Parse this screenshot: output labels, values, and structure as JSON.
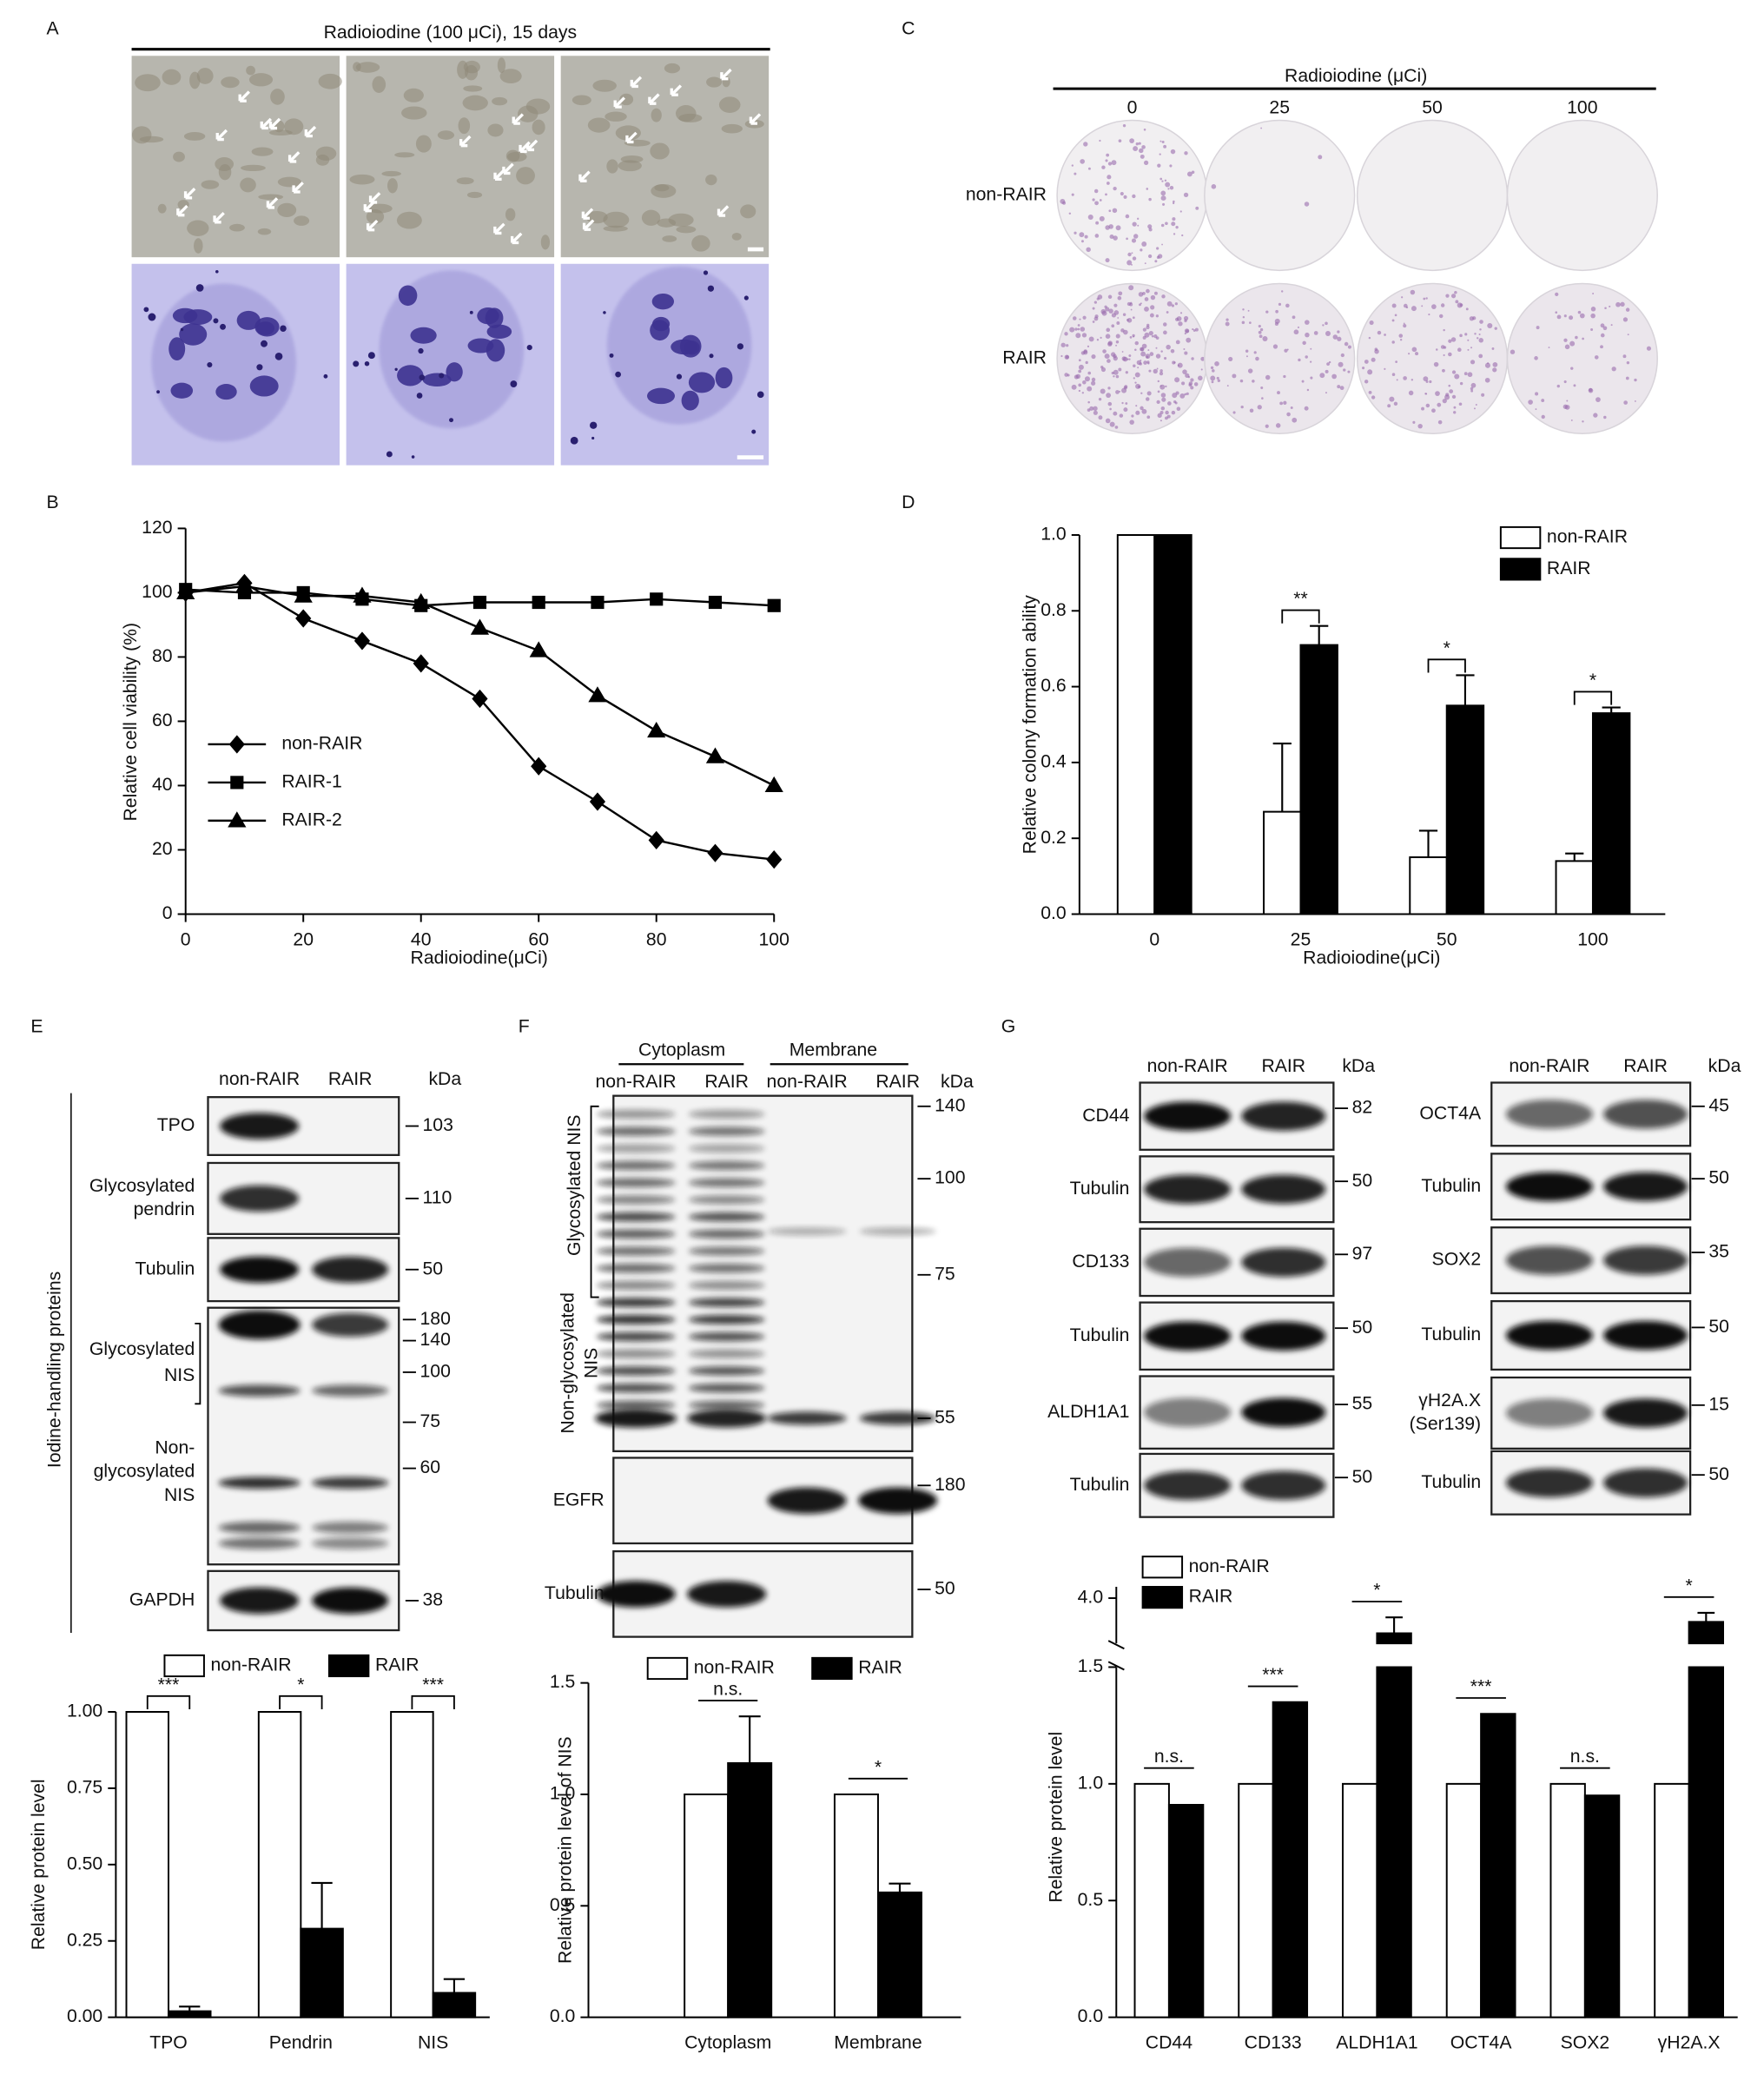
{
  "panel_labels": [
    "A",
    "B",
    "C",
    "D",
    "E",
    "F",
    "G"
  ],
  "panel_a": {
    "title": "Radioiodine (100 μCi), 15 days"
  },
  "panel_c": {
    "title": "Radioiodine (μCi)",
    "columns": [
      "0",
      "25",
      "50",
      "100"
    ],
    "rows": [
      "non-RAIR",
      "RAIR"
    ]
  },
  "panel_e_blot": {
    "lanes": [
      "non-RAIR",
      "RAIR"
    ],
    "unit": "kDa",
    "side_label": "Iodine-handling proteins",
    "rows": [
      {
        "label": [
          "TPO"
        ],
        "kda": [
          103
        ]
      },
      {
        "label": [
          "Glycosylated",
          "pendrin"
        ],
        "kda": [
          110
        ]
      },
      {
        "label": [
          "Tubulin"
        ],
        "kda": [
          50
        ]
      },
      {
        "groups": [
          [
            "Glycosylated",
            "NIS"
          ],
          [
            "Non-",
            "glycosylated",
            "NIS"
          ]
        ],
        "kda": [
          180,
          140,
          100,
          75,
          60
        ]
      },
      {
        "label": [
          "GAPDH"
        ],
        "kda": [
          38
        ]
      }
    ]
  },
  "panel_f_blot": {
    "fractions": [
      "Cytoplasm",
      "Membrane"
    ],
    "lanes": [
      "non-RAIR",
      "RAIR",
      "non-RAIR",
      "RAIR"
    ],
    "unit": "kDa",
    "nis_box": {
      "groups": [
        [
          "Glycosylated NIS"
        ],
        [
          "Non-glycosylated",
          "NIS"
        ]
      ],
      "kda": [
        140,
        100,
        75,
        55
      ]
    },
    "rows": [
      {
        "label": "EGFR",
        "kda": 180
      },
      {
        "label": "Tubulin",
        "kda": 50
      }
    ]
  },
  "panel_g_blot": {
    "left": {
      "lanes": [
        "non-RAIR",
        "RAIR"
      ],
      "unit": "kDa",
      "rows": [
        {
          "label": [
            "CD44"
          ],
          "kda": 82
        },
        {
          "label": [
            "Tubulin"
          ],
          "kda": 50
        },
        {
          "label": [
            "CD133"
          ],
          "kda": 97
        },
        {
          "label": [
            "Tubulin"
          ],
          "kda": 50
        },
        {
          "label": [
            "ALDH1A1"
          ],
          "kda": 55
        },
        {
          "label": [
            "Tubulin"
          ],
          "kda": 50
        }
      ]
    },
    "right": {
      "lanes": [
        "non-RAIR",
        "RAIR"
      ],
      "unit": "kDa",
      "rows": [
        {
          "label": [
            "OCT4A"
          ],
          "kda": 45
        },
        {
          "label": [
            "Tubulin"
          ],
          "kda": 50
        },
        {
          "label": [
            "SOX2"
          ],
          "kda": 35
        },
        {
          "label": [
            "Tubulin"
          ],
          "kda": 50
        },
        {
          "label": [
            "γH2A.X",
            "(Ser139)"
          ],
          "kda": 15
        },
        {
          "label": [
            "Tubulin"
          ],
          "kda": 50
        }
      ]
    }
  },
  "chart_data": [
    {
      "type": "line",
      "ylabel": "Relative cell viability (%)",
      "xlabel": "Radioiodine(μCi)",
      "x": [
        0,
        10,
        20,
        30,
        40,
        50,
        60,
        70,
        80,
        90,
        100
      ],
      "xlim": [
        0,
        100
      ],
      "xticks": [
        0,
        20,
        40,
        60,
        80,
        100
      ],
      "ylim": [
        0,
        120
      ],
      "yticks": [
        0,
        20,
        40,
        60,
        80,
        100,
        120
      ],
      "legend": "lower left",
      "series": [
        {
          "name": "non-RAIR",
          "color": "#000000",
          "marker": "diamond",
          "values": [
            100,
            103,
            92,
            85,
            78,
            67,
            46,
            35,
            23,
            19,
            17
          ]
        },
        {
          "name": "RAIR-1",
          "color": "#000000",
          "marker": "square",
          "values": [
            101,
            100,
            100,
            98,
            96,
            97,
            97,
            97,
            98,
            97,
            96
          ]
        },
        {
          "name": "RAIR-2",
          "color": "#000000",
          "marker": "triangle",
          "values": [
            100,
            102,
            99,
            99,
            97,
            89,
            82,
            68,
            57,
            49,
            40
          ]
        }
      ]
    },
    {
      "type": "bar",
      "ylabel": "Relative colony formation ability",
      "xlabel": "Radioiodine(μCi)",
      "categories": [
        "0",
        "25",
        "50",
        "100"
      ],
      "ylim": [
        0,
        1
      ],
      "yticks": [
        {
          "value": 0,
          "label": "0.0"
        },
        0.2,
        0.4,
        0.6,
        0.8,
        {
          "value": 1,
          "label": "1.0"
        }
      ],
      "legend": "upper right",
      "annotations": [
        null,
        "**",
        "*",
        "*"
      ],
      "series": [
        {
          "name": "non-RAIR",
          "color": "#ffffff",
          "values": [
            1,
            0.27,
            0.15,
            0.14
          ],
          "errors": [
            null,
            0.18,
            0.07,
            0.02
          ]
        },
        {
          "name": "RAIR",
          "color": "#000000",
          "values": [
            1,
            0.71,
            0.55,
            0.53
          ],
          "errors": [
            null,
            0.05,
            0.08,
            0.015
          ]
        }
      ]
    },
    {
      "type": "bar",
      "ylabel": "Relative protein level",
      "categories": [
        "TPO",
        "Pendrin",
        "NIS"
      ],
      "ylim": [
        0,
        1
      ],
      "yticks": [
        {
          "value": 0,
          "label": "0.00"
        },
        0.25,
        {
          "value": 0.5,
          "label": "0.50"
        },
        0.75,
        {
          "value": 1,
          "label": "1.00"
        }
      ],
      "legend": "top",
      "annotations": [
        "***",
        "*",
        "***"
      ],
      "series": [
        {
          "name": "non-RAIR",
          "color": "#ffffff",
          "values": [
            1,
            1,
            1
          ]
        },
        {
          "name": "RAIR",
          "color": "#000000",
          "values": [
            0.02,
            0.29,
            0.08
          ],
          "errors": [
            0.015,
            0.15,
            0.045
          ]
        }
      ]
    },
    {
      "type": "bar",
      "ylabel": "Relative protein level of NIS",
      "categories": [
        "Cytoplasm",
        "Membrane"
      ],
      "ylim": [
        0,
        1.5
      ],
      "yticks": [
        {
          "value": 0,
          "label": "0.0"
        },
        0.5,
        {
          "value": 1,
          "label": "1.0"
        },
        1.5
      ],
      "legend": "top",
      "annotations": [
        "n.s.",
        "*"
      ],
      "series": [
        {
          "name": "non-RAIR",
          "color": "#ffffff",
          "values": [
            1,
            1
          ]
        },
        {
          "name": "RAIR",
          "color": "#000000",
          "values": [
            1.14,
            0.56
          ],
          "errors": [
            0.21,
            0.04
          ]
        }
      ]
    },
    {
      "type": "bar",
      "ylabel": "Relative protein level",
      "categories": [
        "CD44",
        "CD133",
        "ALDH1A1",
        "OCT4A",
        "SOX2",
        "γH2A.X"
      ],
      "ylim": [
        0,
        4.1
      ],
      "ybreak": [
        1.5,
        3.6
      ],
      "yticks": [
        {
          "value": 0,
          "label": "0.0"
        },
        0.5,
        {
          "value": 1,
          "label": "1.0"
        },
        1.5,
        {
          "value": 4,
          "label": "4.0"
        }
      ],
      "legend": "upper left",
      "annotations": [
        "n.s.",
        "***",
        "*",
        "***",
        "n.s.",
        "*"
      ],
      "series": [
        {
          "name": "non-RAIR",
          "color": "#ffffff",
          "values": [
            1,
            1,
            1,
            1,
            1,
            1
          ]
        },
        {
          "name": "RAIR",
          "color": "#000000",
          "values": [
            0.91,
            1.35,
            3.69,
            1.3,
            0.95,
            3.79
          ],
          "errors": [
            null,
            null,
            0.14,
            null,
            null,
            0.08
          ]
        }
      ]
    }
  ]
}
